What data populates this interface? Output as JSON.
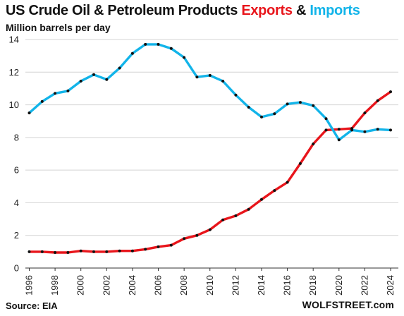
{
  "chart_data": {
    "type": "line",
    "title_parts": {
      "prefix": "US Crude Oil & Petroleum Products",
      "exports_word": "Exports",
      "joiner": "&",
      "imports_word": "Imports"
    },
    "subtitle": "Million barrels per day",
    "source": "Source: EIA",
    "brand": "WOLFSTREET.com",
    "x": [
      1996,
      1997,
      1998,
      1999,
      2000,
      2001,
      2002,
      2003,
      2004,
      2005,
      2006,
      2007,
      2008,
      2009,
      2010,
      2011,
      2012,
      2013,
      2014,
      2015,
      2016,
      2017,
      2018,
      2019,
      2020,
      2021,
      2022,
      2023,
      2024
    ],
    "xticks": [
      "1996",
      "1998",
      "2000",
      "2002",
      "2004",
      "2006",
      "2008",
      "2010",
      "2012",
      "2014",
      "2016",
      "2018",
      "2020",
      "2022",
      "2024"
    ],
    "yticks": [
      "0",
      "2",
      "4",
      "6",
      "8",
      "10",
      "12",
      "14"
    ],
    "ylim": [
      0,
      14
    ],
    "xlim": [
      1995.7,
      2024.6
    ],
    "grid": true,
    "series": [
      {
        "name": "Exports",
        "color": "#e8151b",
        "values": [
          1.0,
          1.0,
          0.95,
          0.95,
          1.05,
          1.0,
          1.0,
          1.05,
          1.05,
          1.15,
          1.3,
          1.4,
          1.8,
          2.0,
          2.35,
          2.95,
          3.2,
          3.6,
          4.2,
          4.75,
          5.25,
          6.4,
          7.6,
          8.45,
          8.5,
          8.55,
          9.5,
          10.25,
          10.8
        ]
      },
      {
        "name": "Imports",
        "color": "#12b4e9",
        "values": [
          9.5,
          10.2,
          10.7,
          10.85,
          11.45,
          11.85,
          11.55,
          12.25,
          13.15,
          13.7,
          13.7,
          13.45,
          12.9,
          11.7,
          11.8,
          11.45,
          10.6,
          9.85,
          9.25,
          9.45,
          10.05,
          10.15,
          9.95,
          9.15,
          7.85,
          8.45,
          8.35,
          8.5,
          8.45
        ]
      }
    ]
  }
}
